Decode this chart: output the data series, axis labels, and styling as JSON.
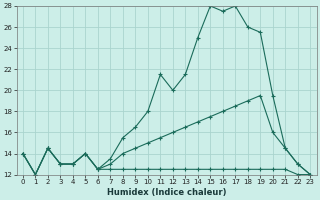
{
  "xlabel": "Humidex (Indice chaleur)",
  "background_color": "#cceee8",
  "grid_color": "#aad4ce",
  "line_color": "#1a6b5a",
  "xlim_min": -0.5,
  "xlim_max": 23.5,
  "ylim_min": 12,
  "ylim_max": 28,
  "xticks": [
    0,
    1,
    2,
    3,
    4,
    5,
    6,
    7,
    8,
    9,
    10,
    11,
    12,
    13,
    14,
    15,
    16,
    17,
    18,
    19,
    20,
    21,
    22,
    23
  ],
  "yticks": [
    12,
    14,
    16,
    18,
    20,
    22,
    24,
    26,
    28
  ],
  "line1_x": [
    0,
    1,
    2,
    3,
    4,
    5,
    6,
    7,
    8,
    9,
    10,
    11,
    12,
    13,
    14,
    15,
    16,
    17,
    18,
    19,
    20,
    21,
    22,
    23
  ],
  "line1_y": [
    14,
    12,
    14.5,
    13,
    13,
    14,
    12.5,
    13.5,
    15.5,
    16.5,
    18,
    21.5,
    20,
    21.5,
    25,
    28,
    27.5,
    28,
    26,
    25.5,
    19.5,
    14.5,
    13,
    12
  ],
  "line2_x": [
    0,
    1,
    2,
    3,
    4,
    5,
    6,
    7,
    8,
    9,
    10,
    11,
    12,
    13,
    14,
    15,
    16,
    17,
    18,
    19,
    20,
    21,
    22,
    23
  ],
  "line2_y": [
    14,
    12,
    14.5,
    13,
    13,
    14,
    12.5,
    13,
    14,
    14.5,
    15,
    15.5,
    16,
    16.5,
    17,
    17.5,
    18,
    18.5,
    19,
    19.5,
    16,
    14.5,
    13,
    12
  ],
  "line3_x": [
    0,
    1,
    2,
    3,
    4,
    5,
    6,
    7,
    8,
    9,
    10,
    11,
    12,
    13,
    14,
    15,
    16,
    17,
    18,
    19,
    20,
    21,
    22,
    23
  ],
  "line3_y": [
    14,
    12,
    14.5,
    13,
    13,
    14,
    12.5,
    12.5,
    12.5,
    12.5,
    12.5,
    12.5,
    12.5,
    12.5,
    12.5,
    12.5,
    12.5,
    12.5,
    12.5,
    12.5,
    12.5,
    12.5,
    12,
    12
  ],
  "xlabel_fontsize": 6,
  "tick_fontsize": 5,
  "linewidth": 0.8,
  "markersize": 3.0
}
